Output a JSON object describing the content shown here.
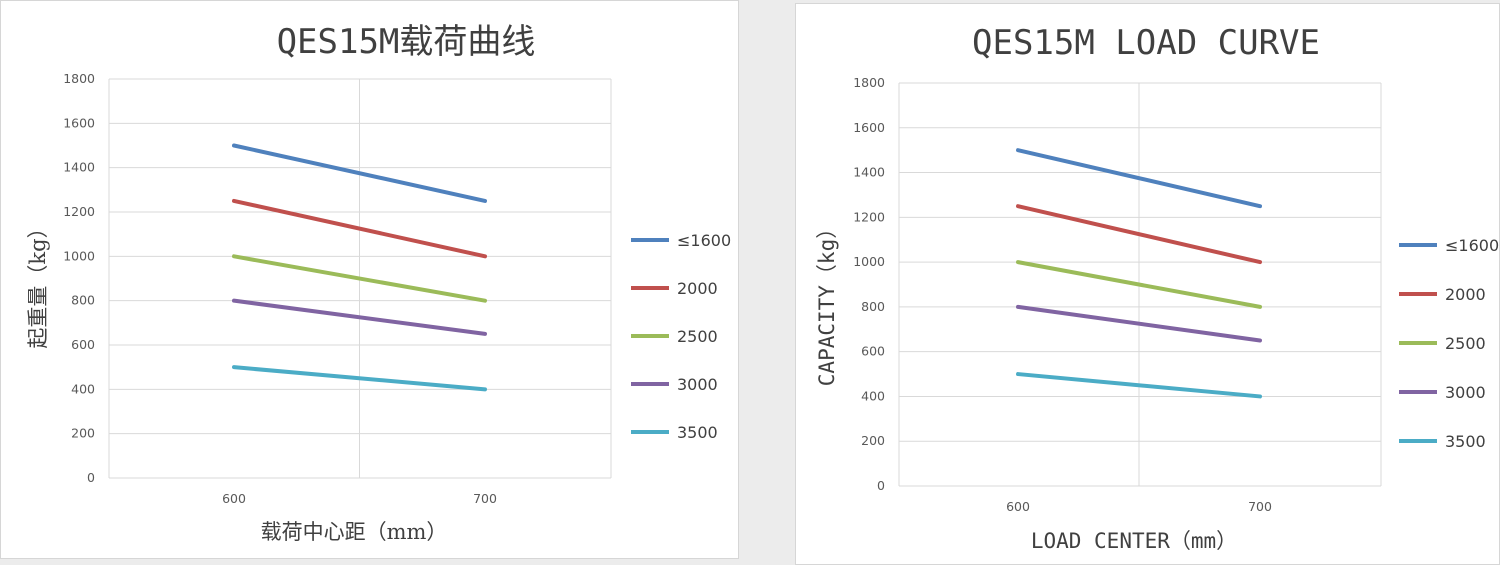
{
  "chart_data": [
    {
      "type": "line",
      "title": "QES15M载荷曲线",
      "xlabel": "载荷中心距（mm）",
      "ylabel": "起重量（kg）",
      "x": [
        600,
        700
      ],
      "x_tick_labels": [
        "600",
        "700"
      ],
      "ylim": [
        0,
        1800
      ],
      "y_ticks": [
        0,
        200,
        400,
        600,
        800,
        1000,
        1200,
        1400,
        1600,
        1800
      ],
      "grid": true,
      "legend_position": "right",
      "series": [
        {
          "name": "≤1600",
          "color": "#4f81bd",
          "values": [
            1500,
            1250
          ]
        },
        {
          "name": "2000",
          "color": "#c0504d",
          "values": [
            1250,
            1000
          ]
        },
        {
          "name": "2500",
          "color": "#9bbb59",
          "values": [
            1000,
            800
          ]
        },
        {
          "name": "3000",
          "color": "#8064a2",
          "values": [
            800,
            650
          ]
        },
        {
          "name": "3500",
          "color": "#4bacc6",
          "values": [
            500,
            400
          ]
        }
      ]
    },
    {
      "type": "line",
      "title": "QES15M LOAD CURVE",
      "xlabel": "LOAD  CENTER（mm）",
      "ylabel": "CAPACITY（kg）",
      "x": [
        600,
        700
      ],
      "x_tick_labels": [
        "600",
        "700"
      ],
      "ylim": [
        0,
        1800
      ],
      "y_ticks": [
        0,
        200,
        400,
        600,
        800,
        1000,
        1200,
        1400,
        1600,
        1800
      ],
      "grid": true,
      "legend_position": "right",
      "series": [
        {
          "name": "≤1600",
          "color": "#4f81bd",
          "values": [
            1500,
            1250
          ]
        },
        {
          "name": "2000",
          "color": "#c0504d",
          "values": [
            1250,
            1000
          ]
        },
        {
          "name": "2500",
          "color": "#9bbb59",
          "values": [
            1000,
            800
          ]
        },
        {
          "name": "3000",
          "color": "#8064a2",
          "values": [
            800,
            650
          ]
        },
        {
          "name": "3500",
          "color": "#4bacc6",
          "values": [
            500,
            400
          ]
        }
      ]
    }
  ]
}
